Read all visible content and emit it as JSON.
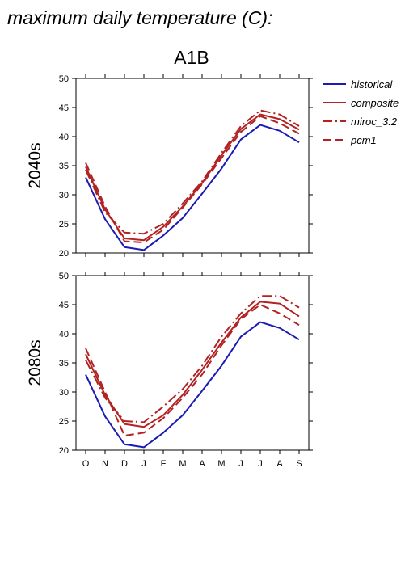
{
  "figure": {
    "title": "maximum daily temperature (C):",
    "scenario": "A1B"
  },
  "legend": [
    {
      "name": "historical",
      "color": "#1a1ab5",
      "dash": "solid"
    },
    {
      "name": "composite",
      "color": "#b22222",
      "dash": "solid"
    },
    {
      "name": "miroc_3.2",
      "color": "#b22222",
      "dash": "dashdot"
    },
    {
      "name": "pcm1",
      "color": "#b22222",
      "dash": "dash"
    }
  ],
  "chart_data": [
    {
      "type": "line",
      "panel": "2040s",
      "ylabel": "2040s",
      "categories": [
        "O",
        "N",
        "D",
        "J",
        "F",
        "M",
        "A",
        "M",
        "J",
        "J",
        "A",
        "S"
      ],
      "ylim": [
        20,
        50
      ],
      "yticks": [
        20,
        25,
        30,
        35,
        40,
        45,
        50
      ],
      "series": [
        {
          "name": "historical",
          "values": [
            33,
            25.8,
            21,
            20.5,
            23,
            26,
            30.2,
            34.5,
            39.5,
            42,
            41,
            39
          ]
        },
        {
          "name": "composite",
          "values": [
            34.8,
            27.5,
            22.5,
            22.2,
            24.5,
            28,
            32,
            36.8,
            41.3,
            43.8,
            43,
            41.2
          ]
        },
        {
          "name": "miroc_3.2",
          "values": [
            34.3,
            27,
            23.5,
            23.3,
            25,
            28.5,
            32.3,
            37.2,
            41.8,
            44.5,
            43.8,
            41.8
          ]
        },
        {
          "name": "pcm1",
          "values": [
            35.5,
            28,
            22,
            21.8,
            24,
            27.8,
            31.8,
            36.3,
            40.8,
            43.5,
            42.3,
            40.5
          ]
        }
      ]
    },
    {
      "type": "line",
      "panel": "2080s",
      "ylabel": "2080s",
      "categories": [
        "O",
        "N",
        "D",
        "J",
        "F",
        "M",
        "A",
        "M",
        "J",
        "J",
        "A",
        "S"
      ],
      "ylim": [
        20,
        50
      ],
      "yticks": [
        20,
        25,
        30,
        35,
        40,
        45,
        50
      ],
      "series": [
        {
          "name": "historical",
          "values": [
            33,
            25.8,
            21,
            20.5,
            23,
            26,
            30.2,
            34.5,
            39.5,
            42,
            41,
            39
          ]
        },
        {
          "name": "composite",
          "values": [
            36.5,
            29.5,
            24.5,
            24,
            26,
            29.5,
            33.8,
            38.5,
            42.8,
            45.5,
            45.2,
            43
          ]
        },
        {
          "name": "miroc_3.2",
          "values": [
            35.5,
            29,
            25,
            24.8,
            27.5,
            30.5,
            34.5,
            39.5,
            43.5,
            46.5,
            46.5,
            44.5
          ]
        },
        {
          "name": "pcm1",
          "values": [
            37.5,
            30,
            22.5,
            23,
            25.5,
            29,
            33,
            38,
            42.5,
            45,
            43.5,
            41.5
          ]
        }
      ]
    }
  ]
}
